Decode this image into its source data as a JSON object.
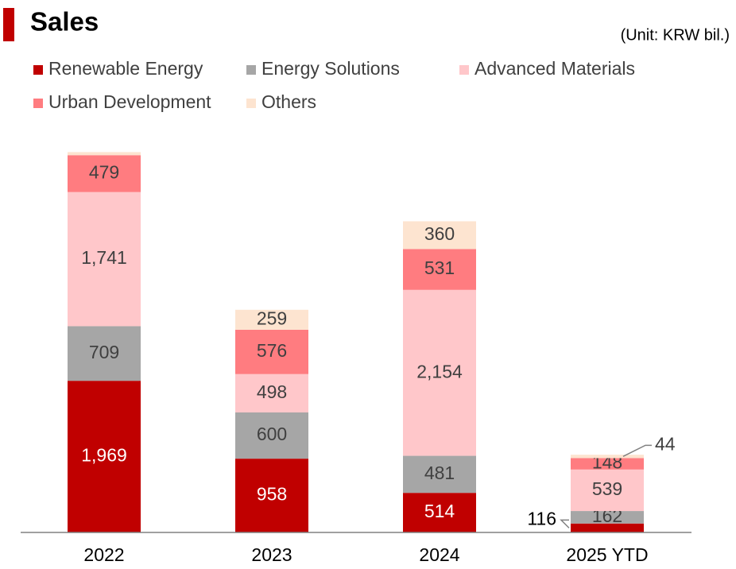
{
  "chart_data": {
    "type": "stacked_bar",
    "title": "Sales",
    "subtitle": "(Unit: KRW bil.)",
    "categories": [
      "2022",
      "2023",
      "2024",
      "2025 YTD"
    ],
    "ylim": [
      0,
      5200
    ],
    "series": [
      {
        "name": "Renewable Energy",
        "color": "#c00000",
        "values": [
          1969,
          958,
          514,
          116
        ],
        "value_labels": [
          "1,969",
          "958",
          "514",
          "116"
        ]
      },
      {
        "name": "Energy Solutions",
        "color": "#a6a6a6",
        "values": [
          709,
          600,
          481,
          162
        ],
        "value_labels": [
          "709",
          "600",
          "481",
          "162"
        ]
      },
      {
        "name": "Advanced Materials",
        "color": "#ffc7ca",
        "values": [
          1741,
          498,
          2154,
          539
        ],
        "value_labels": [
          "1,741",
          "498",
          "2,154",
          "539"
        ]
      },
      {
        "name": "Urban Development",
        "color": "#ff7c80",
        "values": [
          479,
          576,
          531,
          148
        ],
        "value_labels": [
          "479",
          "576",
          "531",
          "148"
        ]
      },
      {
        "name": "Others",
        "color": "#fde4d0",
        "values": [
          40,
          259,
          360,
          44
        ],
        "value_labels": [
          null,
          "259",
          "360",
          "44"
        ]
      }
    ]
  }
}
